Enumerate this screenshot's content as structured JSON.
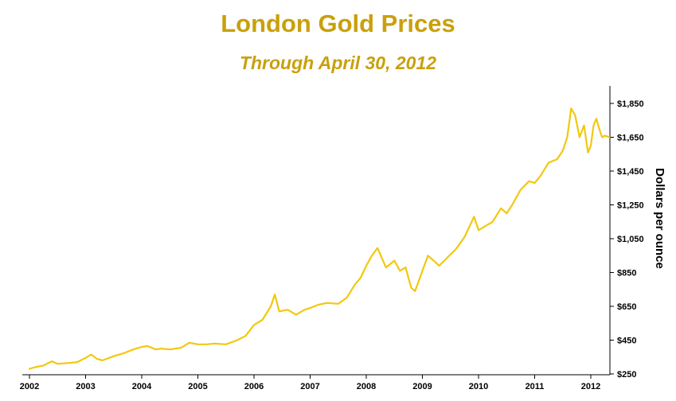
{
  "chart_data": {
    "type": "line",
    "title": "London Gold Prices",
    "subtitle": "Through April 30, 2012",
    "xlabel": "",
    "ylabel": "Dollars per ounce",
    "line_color": "#f2c80f",
    "text_color": "#c9a00c",
    "xlim": [
      2002.0,
      2012.35
    ],
    "ylim": [
      250,
      1950
    ],
    "x_ticks": [
      2002,
      2003,
      2004,
      2005,
      2006,
      2007,
      2008,
      2009,
      2010,
      2011,
      2012
    ],
    "x_tick_labels": [
      "2002",
      "2003",
      "2004",
      "2005",
      "2006",
      "2007",
      "2008",
      "2009",
      "2010",
      "2011",
      "2012"
    ],
    "y_ticks": [
      250,
      450,
      650,
      850,
      1050,
      1250,
      1450,
      1650,
      1850
    ],
    "y_tick_labels": [
      "$250",
      "$450",
      "$650",
      "$850",
      "$1,050",
      "$1,250",
      "$1,450",
      "$1,650",
      "$1,850"
    ],
    "y_axis_side": "right",
    "grid": false,
    "legend": "none",
    "series": [
      {
        "x": [
          2002.0,
          2002.1,
          2002.25,
          2002.4,
          2002.5,
          2002.7,
          2002.85,
          2003.0,
          2003.1,
          2003.2,
          2003.3,
          2003.5,
          2003.7,
          2003.85,
          2004.0,
          2004.1,
          2004.25,
          2004.35,
          2004.5,
          2004.7,
          2004.85,
          2005.0,
          2005.15,
          2005.3,
          2005.5,
          2005.7,
          2005.85,
          2006.0,
          2006.15,
          2006.3,
          2006.37,
          2006.45,
          2006.6,
          2006.75,
          2006.9,
          2007.0,
          2007.15,
          2007.3,
          2007.5,
          2007.65,
          2007.8,
          2007.9,
          2008.0,
          2008.1,
          2008.2,
          2008.35,
          2008.5,
          2008.6,
          2008.7,
          2008.8,
          2008.87,
          2009.0,
          2009.1,
          2009.2,
          2009.3,
          2009.45,
          2009.6,
          2009.75,
          2009.92,
          2010.0,
          2010.1,
          2010.25,
          2010.4,
          2010.5,
          2010.6,
          2010.75,
          2010.9,
          2011.0,
          2011.1,
          2011.25,
          2011.4,
          2011.5,
          2011.58,
          2011.65,
          2011.72,
          2011.8,
          2011.88,
          2011.95,
          2012.0,
          2012.05,
          2012.1,
          2012.15,
          2012.2,
          2012.25,
          2012.33
        ],
        "y": [
          280,
          290,
          300,
          325,
          310,
          315,
          320,
          345,
          365,
          340,
          330,
          355,
          375,
          395,
          410,
          415,
          395,
          400,
          395,
          405,
          435,
          425,
          425,
          430,
          425,
          450,
          475,
          540,
          570,
          650,
          720,
          620,
          630,
          600,
          630,
          640,
          660,
          670,
          665,
          700,
          780,
          820,
          890,
          950,
          995,
          880,
          920,
          860,
          880,
          760,
          740,
          860,
          950,
          920,
          890,
          940,
          990,
          1060,
          1180,
          1100,
          1120,
          1150,
          1230,
          1200,
          1250,
          1340,
          1390,
          1380,
          1420,
          1500,
          1520,
          1570,
          1650,
          1820,
          1780,
          1650,
          1720,
          1560,
          1600,
          1720,
          1760,
          1700,
          1650,
          1660,
          1650
        ]
      }
    ]
  }
}
